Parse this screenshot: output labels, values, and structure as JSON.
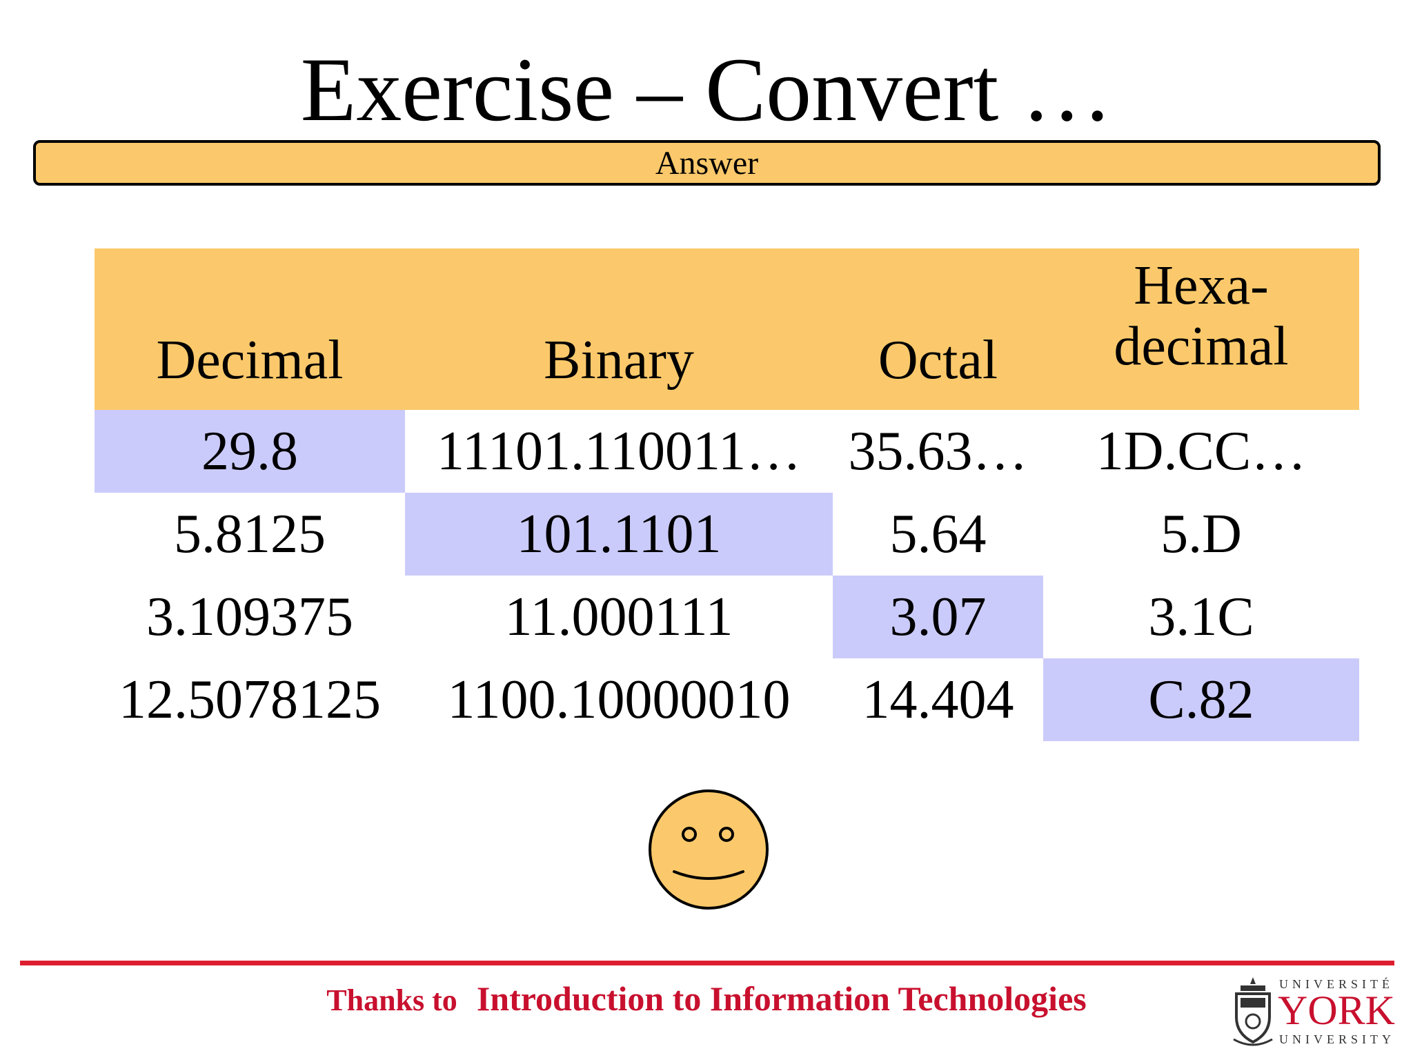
{
  "slide": {
    "title": "Exercise – Convert …",
    "answer_button": "Answer"
  },
  "table": {
    "headers": [
      "Decimal",
      "Binary",
      "Octal",
      "Hexa-\ndecimal"
    ],
    "rows": [
      [
        "29.8",
        "11101.110011…",
        "35.63…",
        "1D.CC…"
      ],
      [
        "5.8125",
        "101.1101",
        "5.64",
        "5.D"
      ],
      [
        "3.109375",
        "11.000111",
        "3.07",
        "3.1C"
      ],
      [
        "12.5078125",
        "1100.10000010",
        "14.404",
        "C.82"
      ]
    ],
    "given_cells": [
      {
        "row": 0,
        "column": "Decimal"
      },
      {
        "row": 1,
        "column": "Binary"
      },
      {
        "row": 2,
        "column": "Octal"
      },
      {
        "row": 3,
        "column": "Hexa-decimal"
      }
    ]
  },
  "smiley": {
    "icon": "smiley-face-icon",
    "fill": "#fbc96b"
  },
  "footer": {
    "prefix": "Thanks to",
    "source": "Introduction to Information Technologies"
  },
  "logo": {
    "top_text": "UNIVERSITÉ",
    "name": "YORK",
    "bottom_text": "UNIVERSITY"
  },
  "colors": {
    "header_fill": "#fbc96b",
    "given_cell_fill": "#cbcbfb",
    "footer_red": "#c8102e"
  }
}
